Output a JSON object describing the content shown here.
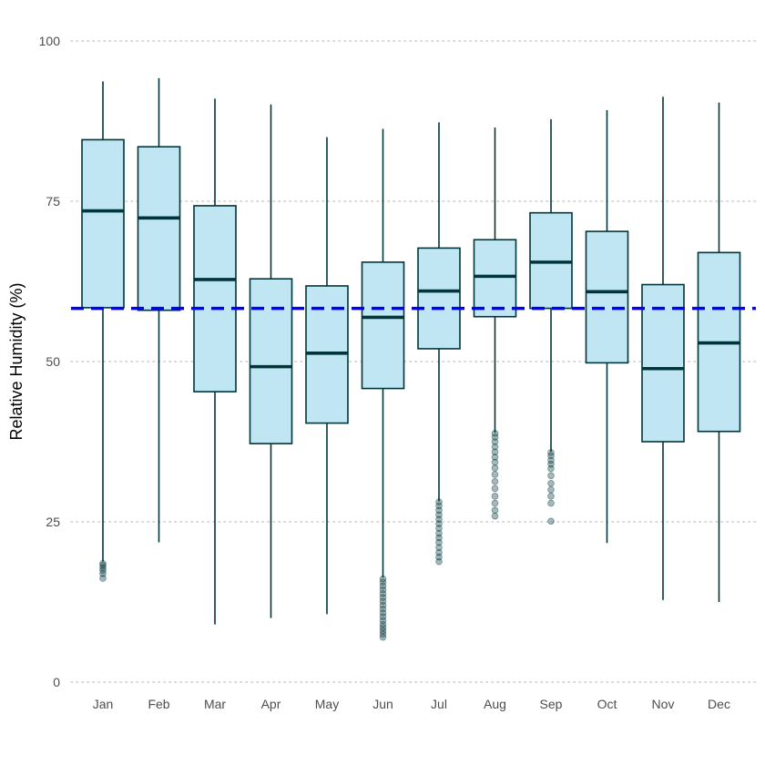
{
  "chart_data": {
    "type": "boxplot",
    "ylabel": "Relative Humidity (%)",
    "xlabel": "",
    "title": "",
    "ylim": [
      0,
      100
    ],
    "yticks": [
      0,
      25,
      50,
      75,
      100
    ],
    "grid": "horizontal dotted",
    "reference_line": {
      "y": 58.3,
      "style": "dashed"
    },
    "categories": [
      "Jan",
      "Feb",
      "Mar",
      "Apr",
      "May",
      "Jun",
      "Jul",
      "Aug",
      "Sep",
      "Oct",
      "Nov",
      "Dec"
    ],
    "boxes": [
      {
        "min": 18.8,
        "q1": 58.4,
        "median": 73.5,
        "q3": 84.6,
        "max": 93.7,
        "outliers": [
          16.2,
          16.9,
          17.4,
          17.8,
          18.2,
          18.5
        ]
      },
      {
        "min": 21.8,
        "q1": 58.0,
        "median": 72.4,
        "q3": 83.5,
        "max": 94.2,
        "outliers": []
      },
      {
        "min": 9.0,
        "q1": 45.3,
        "median": 62.8,
        "q3": 74.3,
        "max": 91.0,
        "outliers": []
      },
      {
        "min": 10.0,
        "q1": 37.2,
        "median": 49.2,
        "q3": 62.9,
        "max": 90.1,
        "outliers": []
      },
      {
        "min": 10.6,
        "q1": 40.4,
        "median": 51.3,
        "q3": 61.8,
        "max": 85.0,
        "outliers": []
      },
      {
        "min": 16.3,
        "q1": 45.8,
        "median": 56.9,
        "q3": 65.5,
        "max": 86.3,
        "outliers": [
          7.0,
          7.5,
          8.0,
          8.5,
          9.0,
          9.6,
          10.2,
          10.8,
          11.4,
          12.0,
          12.6,
          13.2,
          13.8,
          14.4,
          15.0,
          15.6,
          16.1
        ]
      },
      {
        "min": 28.2,
        "q1": 52.0,
        "median": 61.0,
        "q3": 67.7,
        "max": 87.3,
        "outliers": [
          18.8,
          19.5,
          20.2,
          21.0,
          21.8,
          22.5,
          23.2,
          24.0,
          24.7,
          25.4,
          26.1,
          26.8,
          27.5,
          28.1
        ]
      },
      {
        "min": 38.9,
        "q1": 57.0,
        "median": 63.3,
        "q3": 69.0,
        "max": 86.5,
        "outliers": [
          25.9,
          26.8,
          27.9,
          29.0,
          30.2,
          31.3,
          32.4,
          33.4,
          34.3,
          35.1,
          35.9,
          36.7,
          37.5,
          38.2,
          38.8
        ]
      },
      {
        "min": 35.9,
        "q1": 58.3,
        "median": 65.5,
        "q3": 73.2,
        "max": 87.8,
        "outliers": [
          25.1,
          27.9,
          29.0,
          30.0,
          31.0,
          32.2,
          33.3,
          34.0,
          34.6,
          35.3,
          35.8
        ]
      },
      {
        "min": 21.7,
        "q1": 49.8,
        "median": 60.9,
        "q3": 70.3,
        "max": 89.2,
        "outliers": []
      },
      {
        "min": 12.8,
        "q1": 37.5,
        "median": 48.9,
        "q3": 62.0,
        "max": 91.3,
        "outliers": []
      },
      {
        "min": 12.5,
        "q1": 39.1,
        "median": 52.9,
        "q3": 67.0,
        "max": 90.4,
        "outliers": []
      }
    ],
    "colors": {
      "box_fill": "#bfe6f2",
      "box_stroke": "#00363a",
      "whisker": "#00363a",
      "median": "#00363a",
      "outlier": "#00363a",
      "reference_line": "#0000ff",
      "grid": "#bdbdbd"
    }
  }
}
